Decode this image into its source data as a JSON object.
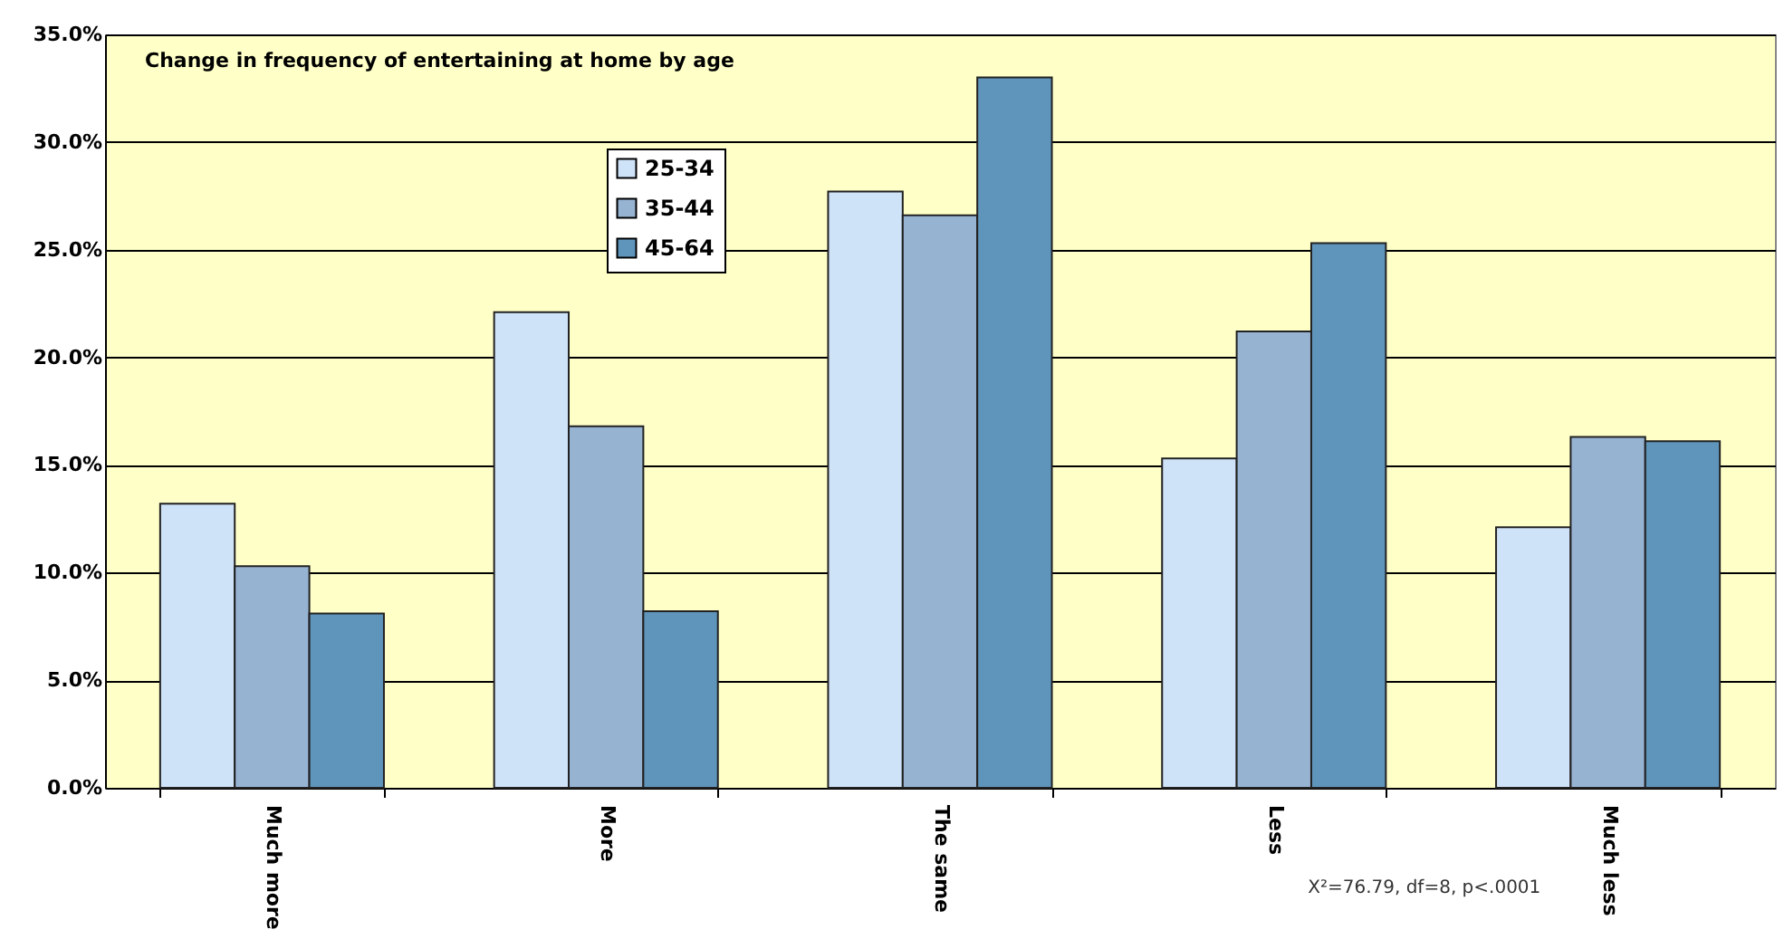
{
  "chart_data": {
    "type": "bar",
    "title": "Change in frequency of entertaining at home by age",
    "categories": [
      "Much more",
      "More",
      "The same",
      "Less",
      "Much less"
    ],
    "series": [
      {
        "name": "25-34",
        "color": "#cfe3f8",
        "values": [
          13.2,
          22.1,
          27.7,
          15.3,
          12.1
        ]
      },
      {
        "name": "35-44",
        "color": "#97b3d2",
        "values": [
          10.3,
          16.8,
          26.6,
          21.2,
          16.3
        ]
      },
      {
        "name": "45-64",
        "color": "#5f95bb",
        "values": [
          8.1,
          8.2,
          33.0,
          25.3,
          16.1
        ]
      }
    ],
    "ylim": [
      0,
      35
    ],
    "yticks": [
      {
        "value": 0,
        "label": "0.0%"
      },
      {
        "value": 5,
        "label": "5.0%"
      },
      {
        "value": 10,
        "label": "10.0%"
      },
      {
        "value": 15,
        "label": "15.0%"
      },
      {
        "value": 20,
        "label": "20.0%"
      },
      {
        "value": 25,
        "label": "25.0%"
      },
      {
        "value": 30,
        "label": "30.0%"
      },
      {
        "value": 35,
        "label": "35.0%"
      }
    ],
    "grid": "y",
    "legend": "top left",
    "annotations": [
      "X²=76.79, df=8, p<.0001"
    ]
  }
}
